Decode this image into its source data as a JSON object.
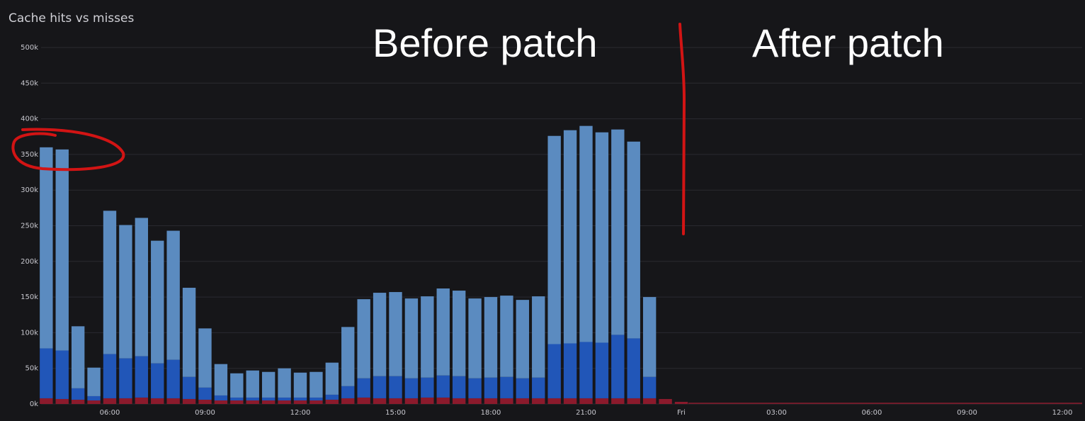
{
  "panel": {
    "title": "Cache hits vs misses"
  },
  "chart_data": {
    "type": "bar",
    "stacked": true,
    "title": "Cache hits vs misses",
    "xlabel": "",
    "ylabel": "",
    "ylim": [
      0,
      500000
    ],
    "y_ticks": [
      "0k",
      "50k",
      "100k",
      "150k",
      "200k",
      "250k",
      "300k",
      "350k",
      "400k",
      "450k",
      "500k"
    ],
    "x_ticks": [
      {
        "label": "06:00",
        "at": "06:00"
      },
      {
        "label": "09:00",
        "at": "09:00"
      },
      {
        "label": "12:00",
        "at": "12:00"
      },
      {
        "label": "15:00",
        "at": "15:00"
      },
      {
        "label": "18:00",
        "at": "18:00"
      },
      {
        "label": "21:00",
        "at": "21:00"
      },
      {
        "label": "Fri",
        "at": "Fri 00:00"
      },
      {
        "label": "03:00",
        "at": "Fri 03:00"
      },
      {
        "label": "06:00",
        "at": "Fri 06:00"
      },
      {
        "label": "09:00",
        "at": "Fri 09:00"
      },
      {
        "label": "12:00",
        "at": "Fri 12:00"
      }
    ],
    "categories": [
      "04:00",
      "04:30",
      "05:00",
      "05:30",
      "06:00",
      "06:30",
      "07:00",
      "07:30",
      "08:00",
      "08:30",
      "09:00",
      "09:30",
      "10:00",
      "10:30",
      "11:00",
      "11:30",
      "12:00",
      "12:30",
      "13:00",
      "13:30",
      "14:00",
      "14:30",
      "15:00",
      "15:30",
      "16:00",
      "16:30",
      "17:00",
      "17:30",
      "18:00",
      "18:30",
      "19:00",
      "19:30",
      "20:00",
      "20:30",
      "21:00",
      "21:30",
      "22:00",
      "22:30",
      "23:00",
      "23:30",
      "Fri 00:00"
    ],
    "series": [
      {
        "color": "#8b1a2c",
        "values": [
          8000,
          7000,
          6000,
          5000,
          8000,
          8000,
          9000,
          8000,
          8000,
          7000,
          6000,
          5000,
          5000,
          5000,
          5000,
          5000,
          5000,
          5000,
          6000,
          8000,
          9000,
          8000,
          8000,
          8000,
          9000,
          9000,
          8000,
          8000,
          8000,
          8000,
          8000,
          8000,
          8000,
          8000,
          8000,
          8000,
          8000,
          8000,
          8000,
          7000,
          3000
        ]
      },
      {
        "color": "#2156b8",
        "values": [
          70000,
          68000,
          16000,
          6000,
          62000,
          56000,
          58000,
          49000,
          54000,
          31000,
          17000,
          7000,
          4000,
          4000,
          4000,
          4000,
          4000,
          4000,
          7000,
          17000,
          27000,
          31000,
          31000,
          28000,
          28000,
          31000,
          31000,
          28000,
          29000,
          30000,
          28000,
          29000,
          76000,
          77000,
          79000,
          78000,
          89000,
          84000,
          30000,
          0,
          0
        ]
      },
      {
        "color": "#5b8bc0",
        "values": [
          282000,
          282000,
          87000,
          40000,
          201000,
          187000,
          194000,
          172000,
          181000,
          125000,
          83000,
          44000,
          34000,
          38000,
          36000,
          41000,
          35000,
          36000,
          45000,
          83000,
          111000,
          117000,
          118000,
          112000,
          114000,
          122000,
          120000,
          112000,
          113000,
          114000,
          110000,
          114000,
          292000,
          299000,
          303000,
          295000,
          288000,
          276000,
          112000,
          0,
          0
        ]
      }
    ]
  },
  "annotations": {
    "before": "Before patch",
    "after": "After patch",
    "divider_color": "#d21414",
    "circle_color": "#d21414"
  },
  "colors": {
    "background": "#161619",
    "grid": "#2a2a30"
  }
}
